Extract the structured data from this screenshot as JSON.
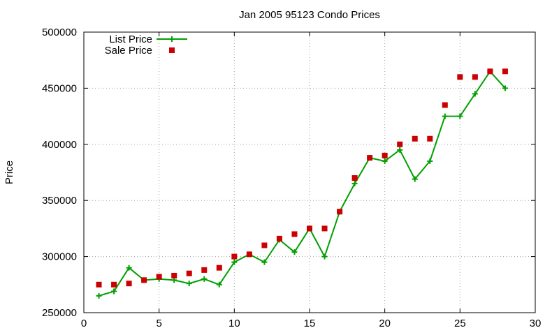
{
  "chart_data": {
    "type": "line",
    "title": "Jan 2005 95123 Condo Prices",
    "xlabel": "",
    "ylabel": "Price",
    "xlim": [
      0,
      30
    ],
    "ylim": [
      250000,
      500000
    ],
    "xticks": [
      0,
      5,
      10,
      15,
      20,
      25,
      30
    ],
    "yticks": [
      250000,
      300000,
      350000,
      400000,
      450000,
      500000
    ],
    "grid": true,
    "legend_position": "top-left",
    "x": [
      1,
      2,
      3,
      4,
      5,
      6,
      7,
      8,
      9,
      10,
      11,
      12,
      13,
      14,
      15,
      16,
      17,
      18,
      19,
      20,
      21,
      22,
      23,
      24,
      25,
      26,
      27,
      28
    ],
    "series": [
      {
        "name": "List Price",
        "style": "line-with-plus-markers",
        "color": "#00a000",
        "values": [
          265000,
          269000,
          290000,
          279000,
          280000,
          279000,
          276000,
          280000,
          275000,
          295000,
          302000,
          295000,
          315000,
          304000,
          325000,
          300000,
          340000,
          365000,
          388000,
          385000,
          395000,
          369000,
          385000,
          425000,
          425000,
          445000,
          465000,
          450000
        ]
      },
      {
        "name": "Sale Price",
        "style": "square-markers",
        "color": "#cc0000",
        "values": [
          275000,
          275000,
          276000,
          279000,
          282000,
          283000,
          285000,
          288000,
          290000,
          300000,
          302000,
          310000,
          316000,
          320000,
          325000,
          325000,
          340000,
          370000,
          388000,
          390000,
          400000,
          405000,
          405000,
          435000,
          460000,
          460000,
          465000,
          465000
        ]
      }
    ]
  }
}
